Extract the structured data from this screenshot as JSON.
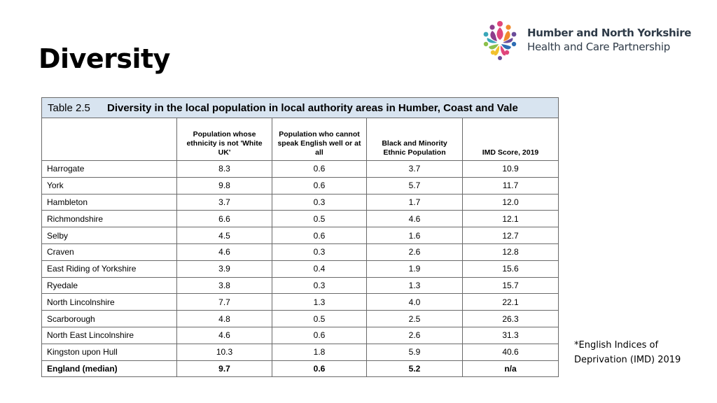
{
  "slide": {
    "title": "Diversity"
  },
  "logo": {
    "line1": "Humber and North Yorkshire",
    "line2": "Health and Care Partnership",
    "colors": [
      "#e0457b",
      "#8e3d8b",
      "#f08a2c",
      "#f2c12e",
      "#3aa7b9",
      "#2e6db4",
      "#8cc04b",
      "#6b4c9a"
    ]
  },
  "table": {
    "number": "Table 2.5",
    "caption": "Diversity in the local population in local authority areas in Humber, Coast and Vale",
    "columns": [
      "",
      "Population whose ethnicity is not 'White UK'",
      "Population who cannot speak English well or at all",
      "Black and Minority Ethnic Population",
      "IMD Score, 2019"
    ],
    "rows": [
      [
        "Harrogate",
        "8.3",
        "0.6",
        "3.7",
        "10.9"
      ],
      [
        "York",
        "9.8",
        "0.6",
        "5.7",
        "11.7"
      ],
      [
        "Hambleton",
        "3.7",
        "0.3",
        "1.7",
        "12.0"
      ],
      [
        "Richmondshire",
        "6.6",
        "0.5",
        "4.6",
        "12.1"
      ],
      [
        "Selby",
        "4.5",
        "0.6",
        "1.6",
        "12.7"
      ],
      [
        "Craven",
        "4.6",
        "0.3",
        "2.6",
        "12.8"
      ],
      [
        "East Riding of Yorkshire",
        "3.9",
        "0.4",
        "1.9",
        "15.6"
      ],
      [
        "Ryedale",
        "3.8",
        "0.3",
        "1.3",
        "15.7"
      ],
      [
        "North Lincolnshire",
        "7.7",
        "1.3",
        "4.0",
        "22.1"
      ],
      [
        "Scarborough",
        "4.8",
        "0.5",
        "2.5",
        "26.3"
      ],
      [
        "North East Lincolnshire",
        "4.6",
        "0.6",
        "2.6",
        "31.3"
      ],
      [
        "Kingston upon Hull",
        "10.3",
        "1.8",
        "5.9",
        "40.6"
      ]
    ],
    "total": [
      "England (median)",
      "9.7",
      "0.6",
      "5.2",
      "n/a"
    ]
  },
  "footnote": {
    "line1": "*English Indices of",
    "line2": "Deprivation (IMD) 2019"
  }
}
